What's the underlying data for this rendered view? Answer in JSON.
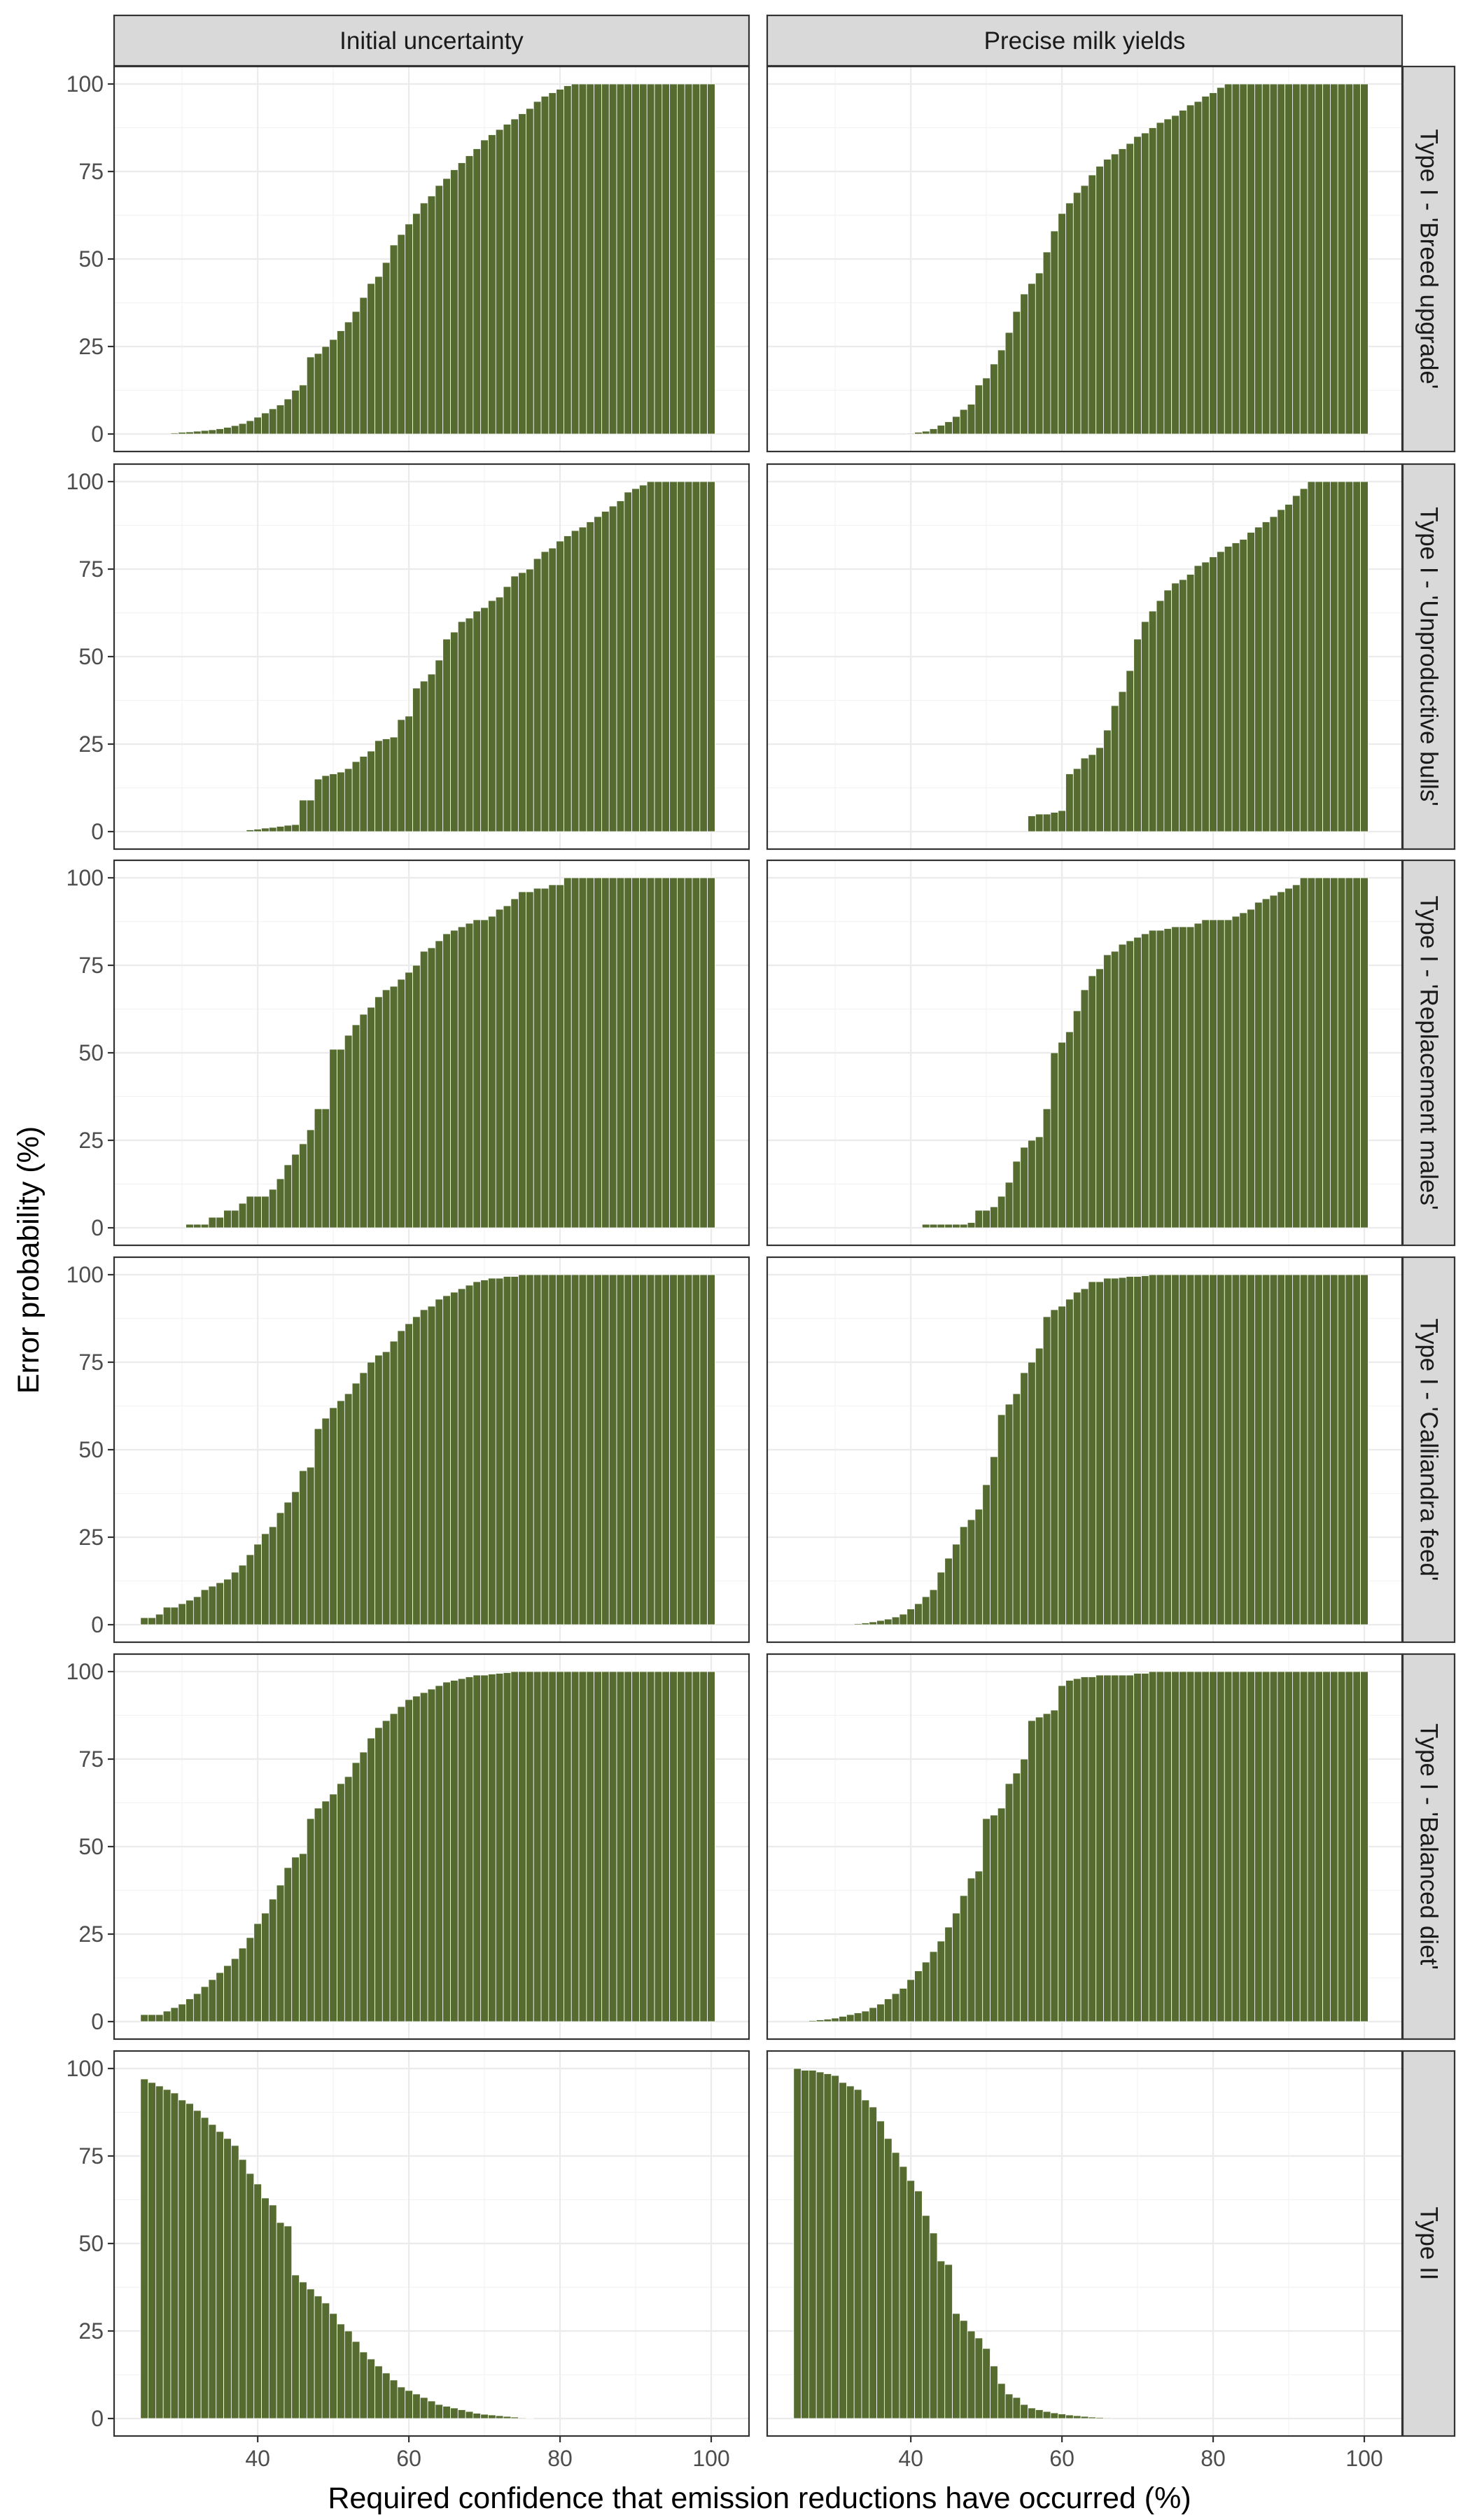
{
  "chart_data": {
    "type": "bar",
    "xlabel": "Required confidence that emission reductions have occurred (%)",
    "ylabel": "Error probability (%)",
    "xlim": [
      21,
      105
    ],
    "ylim": [
      -5,
      105
    ],
    "x_ticks": [
      40,
      60,
      80,
      100
    ],
    "y_ticks": [
      0,
      25,
      50,
      75,
      100
    ],
    "x_start": 25,
    "x_step": 1,
    "grid": true,
    "bar_color": "#556b2f",
    "columns": [
      "Initial uncertainty",
      "Precise milk yields"
    ],
    "rows": [
      "Type I - 'Breed upgrade'",
      "Type I - 'Unproductive bulls'",
      "Type I - 'Replacement males'",
      "Type I - 'Calliandra feed'",
      "Type I - 'Balanced diet'",
      "Type II"
    ],
    "panels": [
      {
        "column": "Initial uncertainty",
        "row": "Type I - 'Breed upgrade'",
        "values": [
          0,
          0,
          0,
          0,
          0.3,
          0.5,
          0.6,
          0.8,
          1,
          1.2,
          1.5,
          1.9,
          2.4,
          3,
          3.8,
          4.8,
          6,
          7.2,
          8.3,
          10,
          12.5,
          14,
          22,
          23,
          25,
          27,
          29.5,
          32,
          35,
          39,
          43,
          45,
          49,
          54,
          57,
          60,
          63,
          66,
          68,
          71,
          73,
          75.5,
          77.5,
          79.5,
          81.5,
          84,
          85.5,
          87,
          88.5,
          90,
          91.5,
          93,
          95,
          96.5,
          97.5,
          98.5,
          99.5,
          100,
          100,
          100,
          100,
          100,
          100,
          100,
          100,
          100,
          100,
          100,
          100,
          100,
          100,
          100,
          100,
          100,
          100,
          100
        ]
      },
      {
        "column": "Precise milk yields",
        "row": "Type I - 'Breed upgrade'",
        "values": [
          0,
          0,
          0,
          0,
          0,
          0,
          0,
          0,
          0,
          0,
          0,
          0,
          0,
          0,
          0,
          0.2,
          0.5,
          0.8,
          1.5,
          2.5,
          3.5,
          5,
          7,
          8.5,
          14,
          16,
          20,
          24,
          29,
          35,
          40,
          43,
          46,
          52,
          58,
          63,
          66,
          69,
          71,
          74,
          76.5,
          78.5,
          80,
          81.5,
          83,
          85,
          86,
          87.5,
          89,
          90,
          91,
          92.5,
          94,
          95,
          96.5,
          97.5,
          99,
          100,
          100,
          100,
          100,
          100,
          100,
          100,
          100,
          100,
          100,
          100,
          100,
          100,
          100,
          100,
          100,
          100,
          100,
          100
        ]
      },
      {
        "column": "Initial uncertainty",
        "row": "Type I - 'Unproductive bulls'",
        "values": [
          0,
          0,
          0,
          0,
          0,
          0,
          0,
          0,
          0,
          0,
          0,
          0,
          0,
          0,
          0.5,
          0.7,
          1,
          1.2,
          1.5,
          1.8,
          2,
          9,
          9,
          15,
          16,
          16.5,
          17,
          18,
          20,
          21.5,
          23,
          26,
          26.5,
          27,
          32,
          33,
          41,
          43,
          45,
          49,
          55,
          57,
          60,
          61,
          63,
          64,
          66,
          67,
          70,
          73,
          74,
          75,
          78,
          80,
          81,
          83,
          84.5,
          86,
          87,
          88.5,
          90,
          91.5,
          93,
          94.5,
          97,
          98,
          99,
          100,
          100,
          100,
          100,
          100,
          100,
          100,
          100,
          100
        ]
      },
      {
        "column": "Precise milk yields",
        "row": "Type I - 'Unproductive bulls'",
        "values": [
          0,
          0,
          0,
          0,
          0,
          0,
          0,
          0,
          0,
          0,
          0,
          0,
          0,
          0,
          0,
          0,
          0,
          0,
          0,
          0,
          0,
          0,
          0,
          0,
          0,
          0,
          0,
          0,
          0,
          0,
          0,
          4.5,
          5,
          5,
          5.5,
          6,
          16.5,
          18,
          21,
          22,
          24,
          29,
          36,
          40,
          46,
          55,
          60,
          63,
          66,
          69,
          71,
          72,
          73.5,
          76,
          77,
          78.5,
          80,
          81.5,
          82.5,
          83.5,
          85.5,
          87,
          88.5,
          90,
          92,
          93.5,
          96,
          98,
          100,
          100,
          100,
          100,
          100,
          100,
          100,
          100
        ]
      },
      {
        "column": "Initial uncertainty",
        "row": "Type I - 'Replacement males'",
        "values": [
          0,
          0,
          0,
          0,
          0,
          0,
          1,
          1,
          1,
          3,
          3,
          5,
          5,
          7,
          9,
          9,
          9,
          11,
          14,
          18,
          21,
          24,
          28,
          34,
          34,
          51,
          51,
          55,
          58,
          61,
          63,
          66,
          68,
          69,
          71,
          73,
          75,
          79,
          80,
          82,
          84,
          85,
          86,
          87,
          88,
          88,
          89,
          91,
          92,
          94,
          96,
          96,
          97,
          97,
          98,
          98,
          100,
          100,
          100,
          100,
          100,
          100,
          100,
          100,
          100,
          100,
          100,
          100,
          100,
          100,
          100,
          100,
          100,
          100,
          100,
          100
        ]
      },
      {
        "column": "Precise milk yields",
        "row": "Type I - 'Replacement males'",
        "values": [
          0,
          0,
          0,
          0,
          0,
          0,
          0,
          0,
          0,
          0,
          0,
          0,
          0,
          0,
          0,
          0,
          0,
          1,
          1,
          1,
          1,
          1,
          1,
          1.5,
          5,
          5,
          6,
          9,
          13,
          19,
          23,
          25,
          26,
          34,
          50,
          53,
          56,
          62,
          68,
          72,
          74,
          78,
          79,
          81,
          82,
          83,
          84,
          85,
          85,
          85.5,
          86,
          86,
          86,
          87,
          88,
          88,
          88,
          88,
          89,
          90,
          91,
          93,
          94,
          95,
          96,
          97,
          98,
          100,
          100,
          100,
          100,
          100,
          100,
          100,
          100,
          100
        ]
      },
      {
        "column": "Initial uncertainty",
        "row": "Type I - 'Calliandra feed'",
        "values": [
          2,
          2,
          3,
          5,
          5,
          6,
          7,
          8,
          10,
          11,
          12,
          13,
          15,
          17,
          20,
          23,
          26,
          28,
          32,
          35,
          38,
          44,
          45,
          56,
          59,
          62,
          64,
          66,
          69,
          72,
          75,
          77,
          78,
          81,
          84,
          86,
          88,
          90,
          91,
          93,
          94,
          95,
          96,
          97,
          98,
          98.5,
          99,
          99,
          99.5,
          99.5,
          100,
          100,
          100,
          100,
          100,
          100,
          100,
          100,
          100,
          100,
          100,
          100,
          100,
          100,
          100,
          100,
          100,
          100,
          100,
          100,
          100,
          100,
          100,
          100,
          100,
          100
        ]
      },
      {
        "column": "Precise milk yields",
        "row": "Type I - 'Calliandra feed'",
        "values": [
          0,
          0,
          0,
          0,
          0,
          0,
          0,
          0,
          0.3,
          0.5,
          0.8,
          1.2,
          1.6,
          2.2,
          3,
          4.5,
          6,
          8,
          10,
          15,
          19,
          23,
          28,
          30,
          33,
          40,
          48,
          60,
          63,
          66,
          72,
          75,
          79,
          88,
          90,
          91,
          93,
          95,
          96,
          98,
          98,
          99,
          99,
          99.2,
          99.5,
          99.5,
          99.7,
          100,
          100,
          100,
          100,
          100,
          100,
          100,
          100,
          100,
          100,
          100,
          100,
          100,
          100,
          100,
          100,
          100,
          100,
          100,
          100,
          100,
          100,
          100,
          100,
          100,
          100,
          100,
          100,
          100
        ]
      },
      {
        "column": "Initial uncertainty",
        "row": "Type I - 'Balanced diet'",
        "values": [
          2,
          2,
          2,
          3,
          4,
          5,
          6.5,
          8,
          10,
          12,
          14,
          16,
          18,
          21,
          24,
          28,
          31,
          35,
          39,
          44,
          47,
          48,
          58,
          61,
          63,
          65,
          68,
          70,
          74,
          77,
          81,
          84,
          86,
          88,
          90,
          92,
          93,
          94,
          95,
          96,
          97,
          97.5,
          98,
          98.5,
          99,
          99,
          99.3,
          99.5,
          99.7,
          100,
          100,
          100,
          100,
          100,
          100,
          100,
          100,
          100,
          100,
          100,
          100,
          100,
          100,
          100,
          100,
          100,
          100,
          100,
          100,
          100,
          100,
          100,
          100,
          100,
          100,
          100
        ]
      },
      {
        "column": "Precise milk yields",
        "row": "Type I - 'Balanced diet'",
        "values": [
          0,
          0,
          0.3,
          0.5,
          0.7,
          1,
          1.5,
          2,
          2.5,
          3,
          4,
          5,
          6.5,
          8,
          9.5,
          12,
          14.5,
          17,
          20,
          23,
          27,
          31,
          36,
          41,
          43,
          58,
          59,
          61,
          68,
          71,
          75,
          86,
          87,
          88,
          89,
          96,
          97.5,
          98,
          98.5,
          98.5,
          99,
          99,
          99,
          99,
          99,
          99.5,
          99.5,
          100,
          100,
          100,
          100,
          100,
          100,
          100,
          100,
          100,
          100,
          100,
          100,
          100,
          100,
          100,
          100,
          100,
          100,
          100,
          100,
          100,
          100,
          100,
          100,
          100,
          100,
          100,
          100,
          100
        ]
      },
      {
        "column": "Initial uncertainty",
        "row": "Type II",
        "values": [
          97,
          96,
          95,
          94,
          93,
          91,
          90,
          88,
          86,
          84,
          82,
          80,
          78,
          74,
          70,
          67,
          63,
          61,
          56,
          55,
          41,
          39,
          37,
          35,
          33,
          30,
          27,
          25,
          22,
          19,
          17,
          15,
          13,
          11,
          9,
          8,
          7,
          6,
          5,
          4,
          3.5,
          3,
          2.5,
          2,
          1.5,
          1.2,
          1,
          0.8,
          0.6,
          0.4,
          0.2,
          0.1,
          0,
          0,
          0,
          0,
          0,
          0,
          0,
          0,
          0,
          0,
          0,
          0,
          0,
          0,
          0,
          0,
          0,
          0,
          0,
          0,
          0,
          0,
          0,
          0
        ]
      },
      {
        "column": "Precise milk yields",
        "row": "Type II",
        "values": [
          100,
          99.5,
          99.5,
          99,
          98.5,
          98,
          96,
          95,
          94,
          91,
          89,
          85,
          80,
          76,
          72,
          68,
          65,
          58,
          53,
          45,
          44,
          30,
          28,
          25,
          23,
          20,
          15,
          10,
          7,
          6,
          4,
          3,
          2.5,
          2,
          1.6,
          1.3,
          1,
          0.8,
          0.6,
          0.4,
          0.3,
          0.2,
          0,
          0,
          0,
          0,
          0,
          0,
          0,
          0,
          0,
          0,
          0,
          0,
          0,
          0,
          0,
          0,
          0,
          0,
          0,
          0,
          0,
          0,
          0,
          0,
          0,
          0,
          0,
          0,
          0,
          0,
          0,
          0,
          0,
          0
        ]
      }
    ]
  }
}
